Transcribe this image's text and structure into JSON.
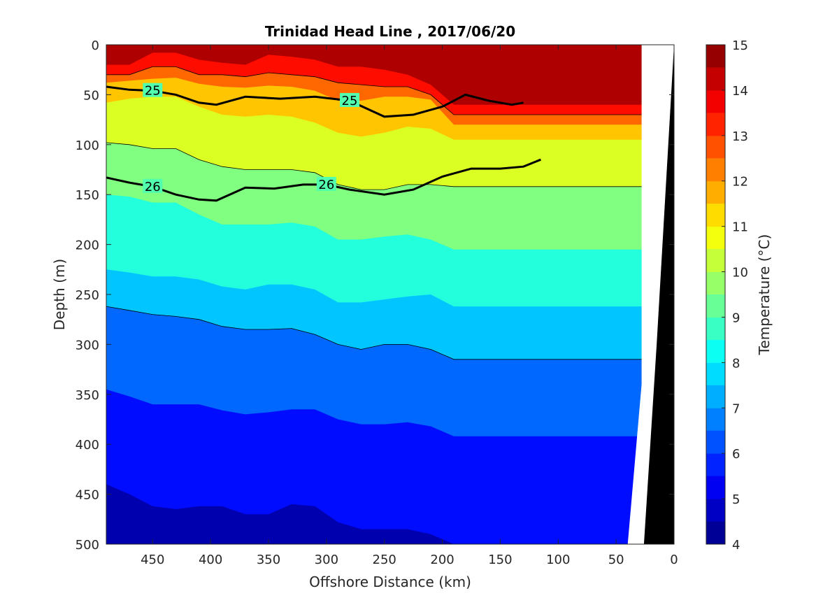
{
  "chart_data": {
    "type": "heatmap",
    "subtype": "filled-contour section",
    "title": "Trinidad Head Line , 2017/06/20",
    "xlabel": "Offshore Distance (km)",
    "ylabel": "Depth (m)",
    "x_ticks": [
      "450",
      "400",
      "350",
      "300",
      "250",
      "200",
      "150",
      "100",
      "50",
      "0"
    ],
    "y_ticks": [
      "0",
      "50",
      "100",
      "150",
      "200",
      "250",
      "300",
      "350",
      "400",
      "450",
      "500"
    ],
    "xlim": [
      490,
      0
    ],
    "ylim": [
      0,
      500
    ],
    "x_reversed": true,
    "y_reversed": true,
    "colorbar": {
      "label": "Temperature (°C)",
      "min": 4,
      "max": 15,
      "ticks": [
        "4",
        "5",
        "6",
        "7",
        "8",
        "9",
        "10",
        "11",
        "12",
        "13",
        "14",
        "15"
      ],
      "colormap": "jet"
    },
    "isotherms": [
      {
        "temp": 14.0,
        "depths": [
          20,
          20,
          8,
          8,
          15,
          18,
          20,
          10,
          12,
          15,
          22,
          22,
          25,
          30,
          40,
          60
        ]
      },
      {
        "temp": 13.0,
        "depths": [
          30,
          30,
          22,
          22,
          30,
          30,
          32,
          28,
          30,
          32,
          38,
          40,
          42,
          42,
          50,
          70
        ]
      },
      {
        "temp": 12.0,
        "depths": [
          38,
          36,
          34,
          33,
          39,
          42,
          43,
          41,
          42,
          46,
          56,
          56,
          52,
          52,
          55,
          80
        ]
      },
      {
        "temp": 11.0,
        "depths": [
          58,
          54,
          52,
          52,
          62,
          70,
          72,
          70,
          72,
          78,
          88,
          92,
          88,
          82,
          84,
          95
        ]
      },
      {
        "temp": 10.0,
        "depths": [
          98,
          100,
          104,
          104,
          115,
          122,
          125,
          125,
          125,
          128,
          140,
          145,
          145,
          140,
          140,
          142
        ]
      },
      {
        "temp": 9.0,
        "depths": [
          150,
          152,
          158,
          158,
          170,
          180,
          180,
          180,
          178,
          182,
          195,
          195,
          192,
          190,
          195,
          205
        ]
      },
      {
        "temp": 8.0,
        "depths": [
          225,
          228,
          232,
          232,
          235,
          242,
          245,
          240,
          240,
          245,
          258,
          258,
          255,
          252,
          250,
          262
        ]
      },
      {
        "temp": 7.0,
        "depths": [
          262,
          266,
          270,
          272,
          275,
          282,
          285,
          285,
          284,
          290,
          300,
          305,
          300,
          300,
          305,
          315
        ]
      },
      {
        "temp": 6.0,
        "depths": [
          345,
          352,
          360,
          360,
          360,
          366,
          370,
          368,
          365,
          365,
          375,
          380,
          380,
          378,
          382,
          392
        ]
      },
      {
        "temp": 5.0,
        "depths": [
          440,
          450,
          462,
          465,
          462,
          462,
          470,
          470,
          460,
          462,
          478,
          485,
          485,
          485,
          490,
          500
        ]
      }
    ],
    "isotherm_x": [
      490,
      470,
      450,
      430,
      410,
      390,
      370,
      350,
      330,
      310,
      290,
      270,
      250,
      230,
      210,
      190
    ],
    "sigma_contours": [
      {
        "label": "25",
        "x": [
          490,
          470,
          450,
          430,
          410,
          395,
          370,
          340,
          310,
          280,
          250,
          225,
          200,
          180,
          160,
          140,
          130
        ],
        "depths": [
          42,
          45,
          46,
          50,
          58,
          60,
          52,
          54,
          52,
          56,
          72,
          70,
          62,
          50,
          56,
          60,
          58
        ]
      },
      {
        "label": "26",
        "x": [
          490,
          470,
          450,
          430,
          410,
          395,
          370,
          345,
          320,
          300,
          280,
          250,
          225,
          200,
          175,
          150,
          130,
          115
        ],
        "depths": [
          133,
          138,
          142,
          150,
          155,
          156,
          143,
          144,
          140,
          140,
          145,
          150,
          145,
          132,
          124,
          124,
          122,
          115
        ]
      }
    ],
    "sigma_labels": [
      "25",
      "25",
      "25",
      "26",
      "26",
      "26"
    ],
    "seafloor": {
      "color": "#000000"
    }
  }
}
